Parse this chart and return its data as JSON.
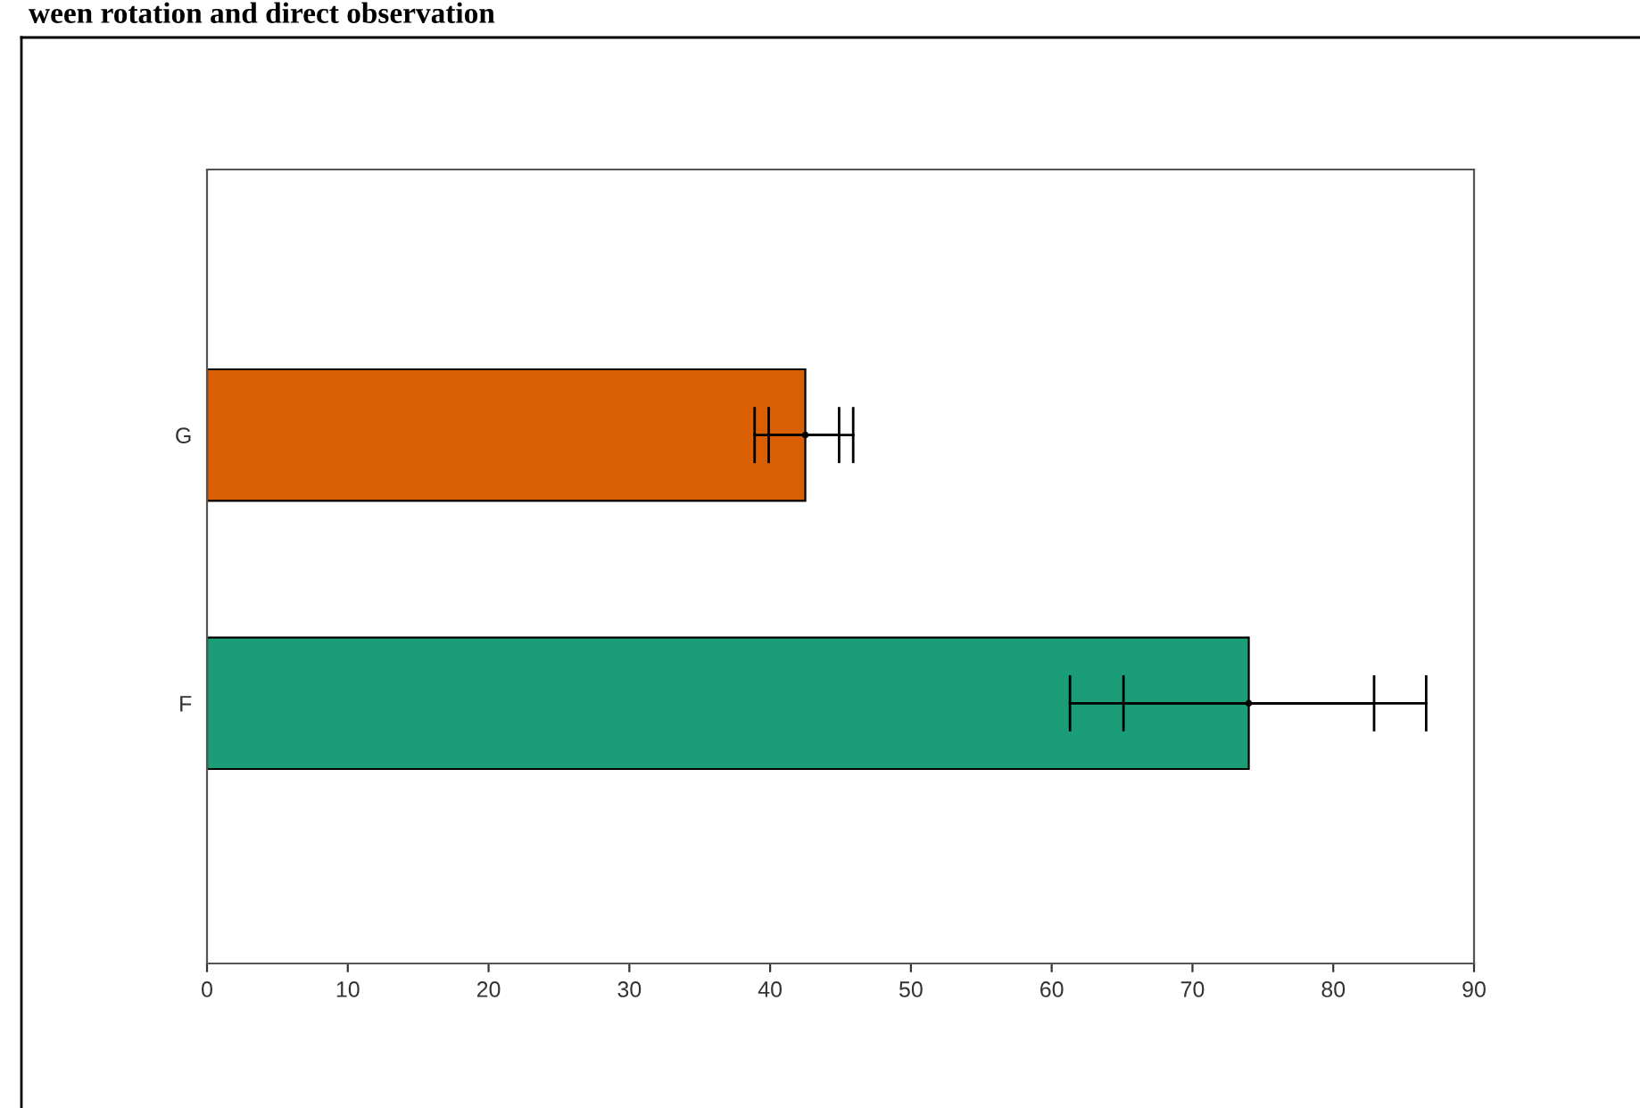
{
  "chart_data": {
    "type": "bar",
    "orientation": "horizontal",
    "title": "ween rotation and direct observation",
    "categories": [
      "G",
      "F"
    ],
    "series": [
      {
        "colors": [
          "#d95f02",
          "#1b9e77"
        ],
        "values": [
          42.5,
          74.0
        ],
        "errors": [
          [
            38.9,
            45.9
          ],
          [
            61.3,
            86.6
          ]
        ]
      },
      {
        "type": "scatter",
        "values": [
          42.5,
          74.0
        ],
        "errors": [
          [
            39.9,
            44.9
          ],
          [
            65.1,
            82.9
          ]
        ]
      }
    ],
    "xlim": [
      0,
      90
    ],
    "xticks": [
      0,
      10,
      20,
      30,
      40,
      50,
      60,
      70,
      80,
      90
    ],
    "grid": false,
    "legend": false
  }
}
